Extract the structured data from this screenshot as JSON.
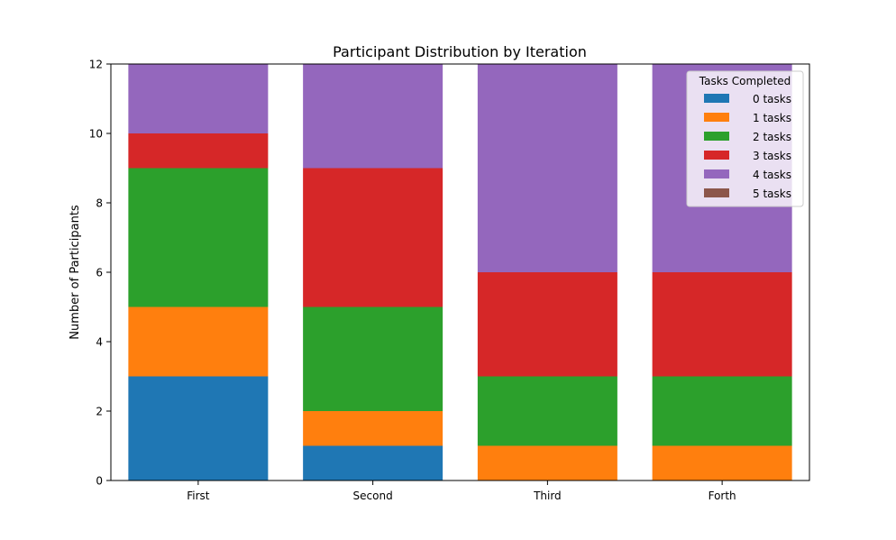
{
  "chart_data": {
    "type": "bar",
    "stacked": true,
    "title": "Participant Distribution by Iteration",
    "xlabel": "",
    "ylabel": "Number of Participants",
    "categories": [
      "First",
      "Second",
      "Third",
      "Forth"
    ],
    "ylim": [
      0,
      12
    ],
    "yticks": [
      0,
      2,
      4,
      6,
      8,
      10,
      12
    ],
    "grid": false,
    "legend": {
      "title": "Tasks Completed",
      "placement": "top-right"
    },
    "series": [
      {
        "name": "0 tasks",
        "values": [
          3,
          1,
          0,
          0
        ],
        "color": "#1f77b4"
      },
      {
        "name": "1 tasks",
        "values": [
          2,
          1,
          1,
          1
        ],
        "color": "#ff7f0e"
      },
      {
        "name": "2 tasks",
        "values": [
          4,
          3,
          2,
          2
        ],
        "color": "#2ca02c"
      },
      {
        "name": "3 tasks",
        "values": [
          1,
          4,
          3,
          3
        ],
        "color": "#d62728"
      },
      {
        "name": "4 tasks",
        "values": [
          2,
          3,
          6,
          6
        ],
        "color": "#9467bd"
      },
      {
        "name": "5 tasks",
        "values": [
          0,
          0,
          0,
          0
        ],
        "color": "#8c564b"
      }
    ]
  }
}
